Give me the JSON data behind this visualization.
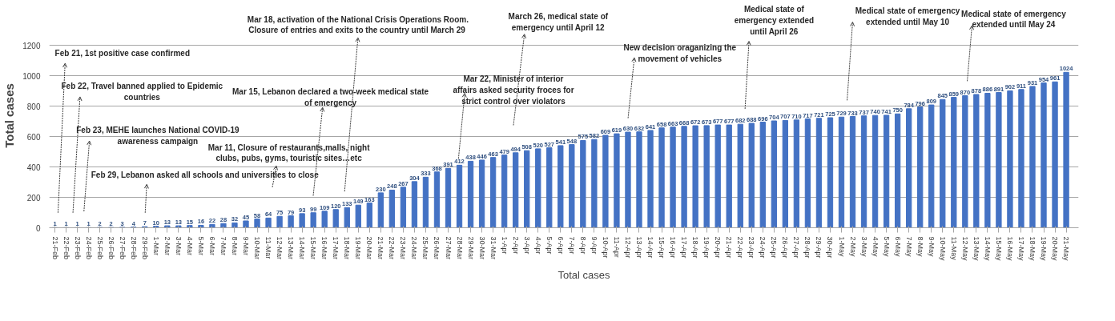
{
  "chart_data": {
    "type": "bar",
    "ylabel": "Total cases",
    "categories": [
      "21-Feb",
      "22-Feb",
      "23-Feb",
      "24-Feb",
      "25-Feb",
      "26-Feb",
      "27-Feb",
      "28-Feb",
      "29-Feb",
      "1-Mar",
      "2-Mar",
      "3-Mar",
      "4-Mar",
      "5-Mar",
      "6-Mar",
      "7-Mar",
      "8-Mar",
      "9-Mar",
      "10-Mar",
      "11-Mar",
      "12-Mar",
      "13-Mar",
      "14-Mar",
      "15-Mar",
      "16-Mar",
      "17-Mar",
      "18-Mar",
      "19-Mar",
      "20-Mar",
      "21-Mar",
      "22-Mar",
      "23-Mar",
      "24-Mar",
      "25-Mar",
      "26-Mar",
      "27-Mar",
      "28-Mar",
      "29-Mar",
      "30-Mar",
      "31-Mar",
      "1-Apr",
      "2-Apr",
      "3-Apr",
      "4-Apr",
      "5-Apr",
      "6-Apr",
      "7-Apr",
      "8-Apr",
      "9-Apr",
      "10-Apr",
      "11-Apr",
      "12-Apr",
      "13-Apr",
      "14-Apr",
      "15-Apr",
      "16-Apr",
      "17-Apr",
      "18-Apr",
      "19-Apr",
      "20-Apr",
      "21-Apr",
      "22-Apr",
      "23-Apr",
      "24-Apr",
      "25-Apr",
      "26-Apr",
      "27-Apr",
      "28-Apr",
      "29-Apr",
      "30-Apr",
      "1-May",
      "2-May",
      "3-May",
      "4-May",
      "5-May",
      "6-May",
      "7-May",
      "8-May",
      "9-May",
      "10-May",
      "11-May",
      "12-May",
      "13-May",
      "14-May",
      "15-May",
      "16-May",
      "17-May",
      "18-May",
      "19-May",
      "20-May",
      "21-May"
    ],
    "series": [
      {
        "name": "Total cases",
        "color": "#4472c4",
        "values": [
          1,
          1,
          1,
          1,
          2,
          2,
          3,
          4,
          7,
          10,
          13,
          13,
          15,
          16,
          22,
          28,
          32,
          45,
          58,
          64,
          75,
          79,
          93,
          99,
          109,
          120,
          133,
          149,
          163,
          230,
          248,
          267,
          304,
          333,
          368,
          391,
          412,
          438,
          446,
          463,
          479,
          494,
          508,
          520,
          527,
          541,
          548,
          575,
          582,
          609,
          619,
          630,
          632,
          641,
          658,
          663,
          668,
          672,
          673,
          677,
          677,
          682,
          688,
          696,
          704,
          707,
          710,
          717,
          721,
          725,
          729,
          733,
          737,
          740,
          741,
          750,
          784,
          796,
          809,
          845,
          859,
          870,
          878,
          886,
          891,
          902,
          911,
          931,
          954,
          961,
          1024
        ]
      }
    ],
    "data_labels": true,
    "ylim": [
      0,
      1200
    ],
    "yticks": [
      0,
      200,
      400,
      600,
      800,
      1000,
      1200
    ],
    "grid": "y",
    "legend": "bottom",
    "annotations": [
      "Feb 21, 1st positive case confirmed",
      "Feb 22, Travel banned applied to Epidemic\ncountries",
      "Feb 23, MEHE launches National COVID-19\nawareness campaign",
      "Feb 29, Lebanon asked all schools and universities to close",
      "Mar 11, Closure of restaurants,malls, night\nclubs, pubs, gyms, touristic sites…etc",
      "Mar 15, Lebanon declared a two-week medical state\nof emergency",
      "Mar 18, activation of the National Crisis Operations Room.\nClosure of entries and exits  to the country until March 29",
      "Mar 22, Minister of interior\naffairs asked security froces for\nstrict control over violators",
      "March 26, medical state of\nemergency until April 12",
      "New decision oraganizing the\nmovement of vehicles",
      "Medical state of\nemergency extended\nuntil April 26",
      "Medical state of emergency\nextended until May 10",
      "Medical state of emergency\nextended until May 24"
    ]
  }
}
